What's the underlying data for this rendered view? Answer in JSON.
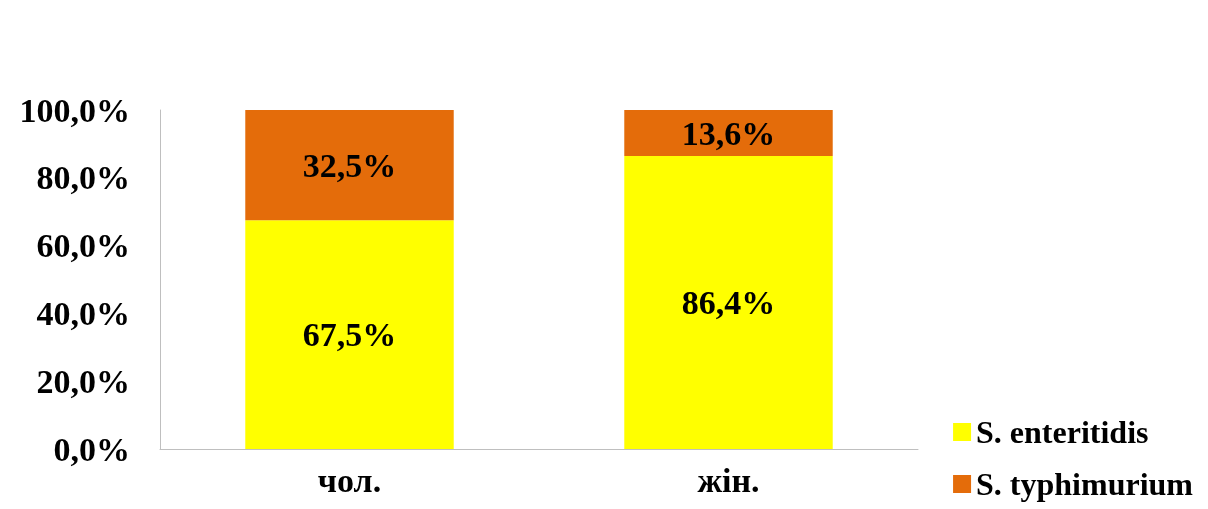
{
  "chart_data": {
    "type": "bar",
    "stacked": true,
    "categories": [
      "чол.",
      "жін."
    ],
    "series": [
      {
        "name": "S. enteritidis",
        "color": "#ffff00",
        "values": [
          67.5,
          86.4
        ],
        "value_labels": [
          "67,5%",
          "86,4%"
        ]
      },
      {
        "name": "S. typhimurium",
        "color": "#e46c0a",
        "values": [
          32.5,
          13.6
        ],
        "value_labels": [
          "32,5%",
          "13,6%"
        ]
      }
    ],
    "ylim": [
      0,
      100
    ],
    "yticks": [
      {
        "value": 0,
        "label": "0,0%"
      },
      {
        "value": 20,
        "label": "20,0%"
      },
      {
        "value": 40,
        "label": "40,0%"
      },
      {
        "value": 60,
        "label": "60,0%"
      },
      {
        "value": 80,
        "label": "80,0%"
      },
      {
        "value": 100,
        "label": "100,0%"
      }
    ],
    "grid": false,
    "legend": "bottom right"
  }
}
